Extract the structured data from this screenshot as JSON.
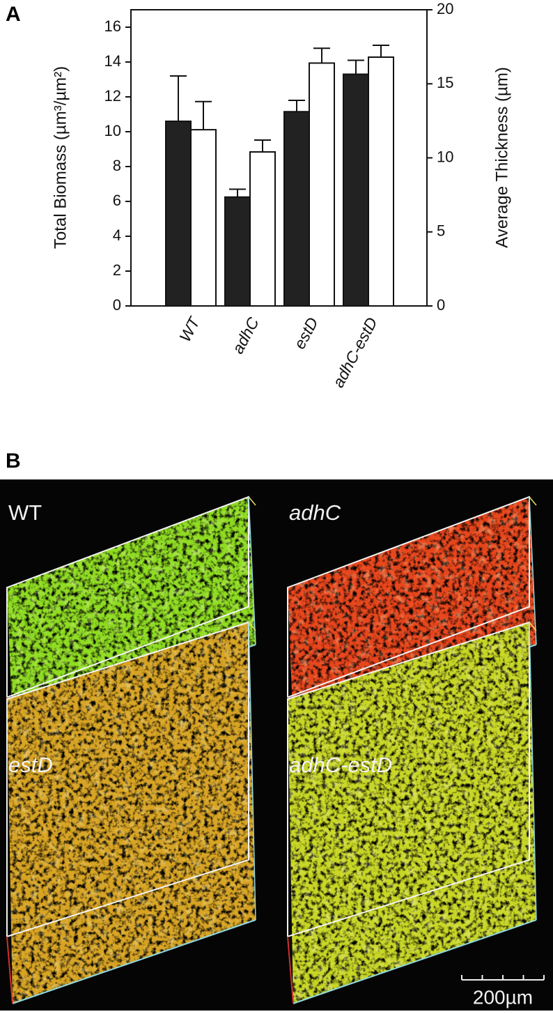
{
  "panel_labels": [
    "A",
    "B"
  ],
  "chart_data": {
    "type": "bar",
    "ylabel": "Total Biomass (µm³/µm²)",
    "y2label": "Average Thickness (µm)",
    "categories": [
      "WT",
      "adhC",
      "estD",
      "adhC-estD"
    ],
    "series": [
      {
        "color": "#222222",
        "values": [
          10.6,
          6.25,
          11.15,
          13.3
        ],
        "errors": [
          2.6,
          0.45,
          0.65,
          0.8
        ]
      },
      {
        "color": "#ffffff",
        "axis": "y2",
        "values": [
          11.9,
          10.4,
          16.4,
          16.8
        ],
        "errors": [
          1.9,
          0.8,
          1.0,
          0.8
        ]
      }
    ],
    "ylim": [
      0,
      17
    ],
    "yticks": [
      0,
      2,
      4,
      6,
      8,
      10,
      12,
      14,
      16
    ],
    "y2lim": [
      0,
      20
    ],
    "y2ticks": [
      0,
      5,
      10,
      15,
      20
    ]
  },
  "micrographs": {
    "labels": [
      "WT",
      "adhC",
      "estD",
      "adhC-estD"
    ],
    "scale_bar": "200µm"
  }
}
